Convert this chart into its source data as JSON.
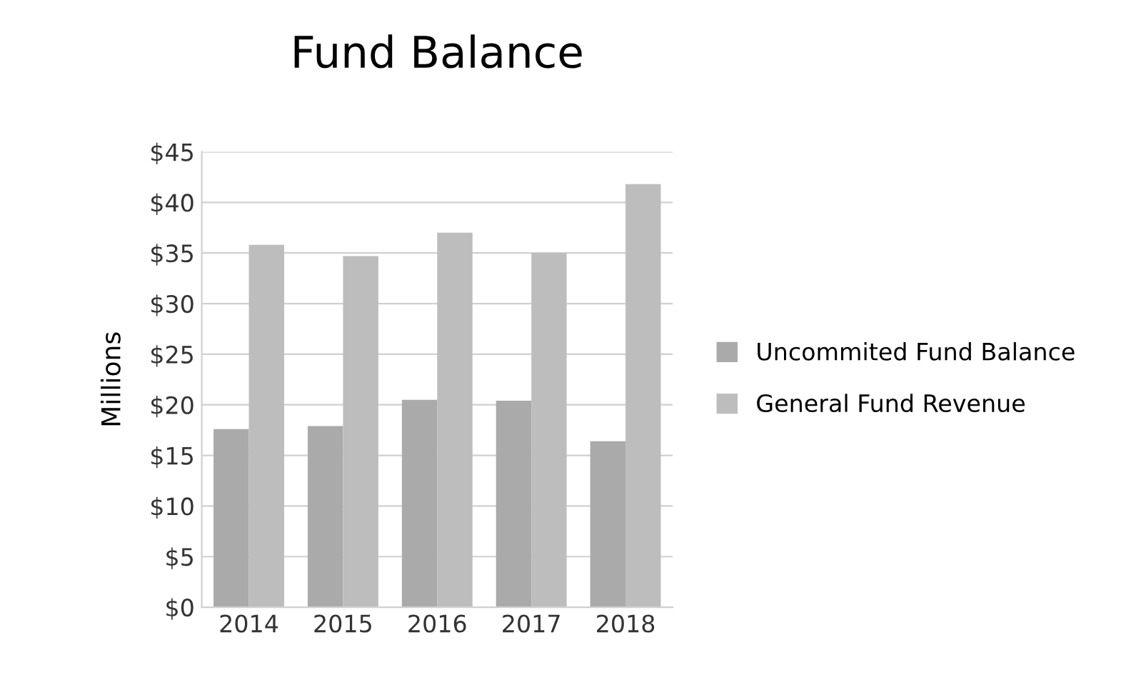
{
  "chart_data": {
    "type": "bar",
    "title": "Fund Balance",
    "ylabel": "Millions",
    "categories": [
      "2014",
      "2015",
      "2016",
      "2017",
      "2018"
    ],
    "series": [
      {
        "name": "Uncommited Fund Balance",
        "color": "#aaaaaa",
        "values": [
          17.6,
          17.9,
          20.5,
          20.4,
          16.4
        ]
      },
      {
        "name": "General Fund Revenue",
        "color": "#bdbdbd",
        "values": [
          35.8,
          34.7,
          37.0,
          35.0,
          41.8
        ]
      }
    ],
    "ylim": [
      0,
      45
    ],
    "yticks": [
      {
        "value": 0,
        "label": "$0"
      },
      {
        "value": 5,
        "label": "$5"
      },
      {
        "value": 10,
        "label": "$10"
      },
      {
        "value": 15,
        "label": "$15"
      },
      {
        "value": 20,
        "label": "$20"
      },
      {
        "value": 25,
        "label": "$25"
      },
      {
        "value": 30,
        "label": "$30"
      },
      {
        "value": 35,
        "label": "$35"
      },
      {
        "value": 40,
        "label": "$40"
      },
      {
        "value": 45,
        "label": "$45"
      }
    ],
    "grid": "y",
    "legend": "right"
  }
}
